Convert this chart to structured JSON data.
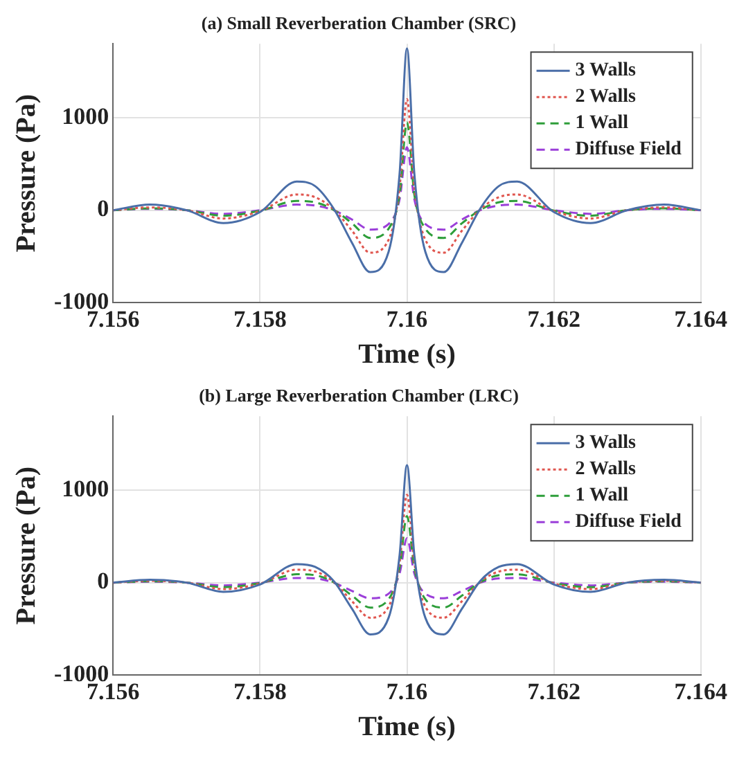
{
  "chart_data": [
    {
      "type": "line",
      "title": "(a) Small Reverberation Chamber (SRC)",
      "xlabel": "Time (s)",
      "ylabel": "Pressure (Pa)",
      "xlim": [
        7.156,
        7.164
      ],
      "xticks": [
        7.156,
        7.158,
        7.16,
        7.162,
        7.164
      ],
      "ylim": [
        -1000,
        1800
      ],
      "yticks": [
        -1000,
        0,
        1000
      ],
      "grid": true,
      "legend": "top right",
      "marker": "none",
      "x": [
        7.156,
        7.1565,
        7.157,
        7.1575,
        7.158,
        7.1585,
        7.15875,
        7.159,
        7.15925,
        7.1595,
        7.15975,
        7.1599,
        7.16,
        7.1601,
        7.16025,
        7.1605,
        7.16075,
        7.161,
        7.16125,
        7.1615,
        7.162,
        7.1625,
        7.163,
        7.1635,
        7.164
      ],
      "series": [
        {
          "name": "3 Walls",
          "color": "#4a6ea8",
          "line_style": "solid",
          "values": [
            0,
            60,
            0,
            -140,
            -20,
            310,
            260,
            20,
            -350,
            -670,
            -450,
            400,
            1750,
            400,
            -450,
            -670,
            -350,
            20,
            260,
            310,
            -20,
            -140,
            0,
            60,
            0
          ]
        },
        {
          "name": "2 Walls",
          "color": "#e0564f",
          "line_style": "dotted",
          "values": [
            0,
            30,
            0,
            -90,
            -10,
            170,
            140,
            10,
            -220,
            -460,
            -320,
            250,
            1200,
            250,
            -320,
            -460,
            -220,
            10,
            140,
            170,
            -10,
            -90,
            0,
            30,
            0
          ]
        },
        {
          "name": "1 Wall",
          "color": "#2e9e3a",
          "line_style": "dashed",
          "values": [
            0,
            20,
            0,
            -60,
            -5,
            100,
            85,
            5,
            -140,
            -300,
            -200,
            170,
            950,
            170,
            -200,
            -300,
            -140,
            5,
            85,
            100,
            -5,
            -60,
            0,
            20,
            0
          ]
        },
        {
          "name": "Diffuse Field",
          "color": "#9b3fd9",
          "line_style": "dashed",
          "values": [
            0,
            15,
            0,
            -40,
            0,
            60,
            50,
            0,
            -100,
            -210,
            -150,
            120,
            680,
            120,
            -150,
            -210,
            -100,
            0,
            50,
            60,
            0,
            -40,
            0,
            15,
            0
          ]
        }
      ]
    },
    {
      "type": "line",
      "title": "(b) Large Reverberation Chamber (LRC)",
      "xlabel": "Time (s)",
      "ylabel": "Pressure (Pa)",
      "xlim": [
        7.156,
        7.164
      ],
      "xticks": [
        7.156,
        7.158,
        7.16,
        7.162,
        7.164
      ],
      "ylim": [
        -1000,
        1800
      ],
      "yticks": [
        -1000,
        0,
        1000
      ],
      "grid": true,
      "legend": "top right",
      "marker": "none",
      "x": [
        7.156,
        7.1565,
        7.157,
        7.1575,
        7.158,
        7.1585,
        7.15875,
        7.159,
        7.15925,
        7.1595,
        7.15975,
        7.1599,
        7.16,
        7.1601,
        7.16025,
        7.1605,
        7.16075,
        7.161,
        7.16125,
        7.1615,
        7.162,
        7.1625,
        7.163,
        7.1635,
        7.164
      ],
      "series": [
        {
          "name": "3 Walls",
          "color": "#4a6ea8",
          "line_style": "solid",
          "values": [
            0,
            30,
            0,
            -100,
            -20,
            200,
            170,
            20,
            -280,
            -560,
            -380,
            300,
            1270,
            300,
            -380,
            -560,
            -280,
            20,
            170,
            200,
            -20,
            -100,
            0,
            30,
            0
          ]
        },
        {
          "name": "2 Walls",
          "color": "#e0564f",
          "line_style": "dotted",
          "values": [
            0,
            20,
            0,
            -70,
            -10,
            140,
            120,
            10,
            -200,
            -380,
            -260,
            220,
            950,
            220,
            -260,
            -380,
            -200,
            10,
            120,
            140,
            -10,
            -70,
            0,
            20,
            0
          ]
        },
        {
          "name": "1 Wall",
          "color": "#2e9e3a",
          "line_style": "dashed",
          "values": [
            0,
            15,
            0,
            -50,
            -5,
            90,
            80,
            5,
            -140,
            -270,
            -180,
            160,
            720,
            160,
            -180,
            -270,
            -140,
            5,
            80,
            90,
            -5,
            -50,
            0,
            15,
            0
          ]
        },
        {
          "name": "Diffuse Field",
          "color": "#9b3fd9",
          "line_style": "dashed",
          "values": [
            0,
            10,
            0,
            -30,
            0,
            50,
            45,
            0,
            -90,
            -170,
            -120,
            100,
            480,
            100,
            -120,
            -170,
            -90,
            0,
            45,
            50,
            0,
            -30,
            0,
            10,
            0
          ]
        }
      ]
    }
  ]
}
